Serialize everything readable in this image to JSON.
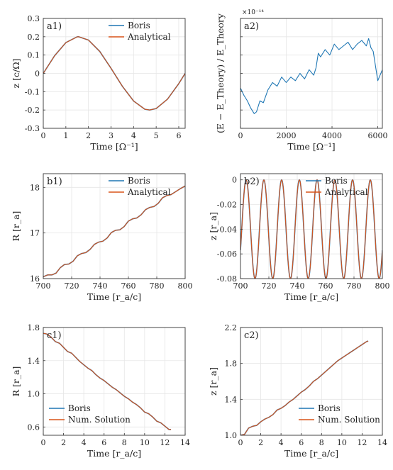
{
  "figure": {
    "colors": {
      "boris": "#1f77b4",
      "analytical": "#d95319",
      "grid": "#e6e6e6",
      "axis": "#333333"
    }
  },
  "chart_data": [
    {
      "id": "a1",
      "type": "line",
      "panel_label": "a1)",
      "xlabel": "Time [Ω⁻¹]",
      "ylabel": "z [c/Ω]",
      "xlim": [
        0,
        6.2832
      ],
      "ylim": [
        -0.3,
        0.3
      ],
      "xticks": [
        0,
        1,
        2,
        3,
        4,
        5,
        6
      ],
      "xticklabels": [
        "0",
        "1",
        "2",
        "3",
        "4",
        "5",
        "6"
      ],
      "yticks": [
        -0.3,
        -0.2,
        -0.1,
        0,
        0.1,
        0.2,
        0.3
      ],
      "yticklabels": [
        "-0.3",
        "-0.2",
        "-0.1",
        "0",
        "0.1",
        "0.2",
        "0.3"
      ],
      "grid": true,
      "legend_position": "top-right",
      "series": [
        {
          "name": "Boris",
          "color": "#1f77b4",
          "x": [
            0,
            0.5,
            1,
            1.5,
            1.571,
            2,
            2.5,
            3,
            3.5,
            4,
            4.5,
            4.712,
            5,
            5.5,
            6,
            6.283
          ],
          "y": [
            0,
            0.096,
            0.168,
            0.1995,
            0.2,
            0.182,
            0.12,
            0.028,
            -0.07,
            -0.151,
            -0.196,
            -0.2,
            -0.192,
            -0.141,
            -0.056,
            0
          ]
        },
        {
          "name": "Analytical",
          "color": "#d95319",
          "x": [
            0,
            0.5,
            1,
            1.5,
            1.571,
            2,
            2.5,
            3,
            3.5,
            4,
            4.5,
            4.712,
            5,
            5.5,
            6,
            6.283
          ],
          "y": [
            0,
            0.096,
            0.168,
            0.1995,
            0.2,
            0.182,
            0.12,
            0.028,
            -0.07,
            -0.151,
            -0.196,
            -0.2,
            -0.192,
            -0.141,
            -0.056,
            0
          ]
        }
      ]
    },
    {
      "id": "a2",
      "type": "line",
      "panel_label": "a2)",
      "xlabel": "Time [Ω⁻¹]",
      "ylabel": "(E − E_Theory) / E_Theory",
      "scale_note": "×10⁻¹⁴",
      "xlim": [
        0,
        6200
      ],
      "ylim": [
        -2,
        4
      ],
      "xticks": [
        0,
        2000,
        4000,
        6000
      ],
      "xticklabels": [
        "0",
        "2000",
        "4000",
        "6000"
      ],
      "yticks": [
        -2,
        -1,
        0,
        1,
        2,
        3,
        4
      ],
      "yticklabels": [
        "",
        "",
        "",
        "",
        "",
        "",
        ""
      ],
      "grid": true,
      "legend_position": "none",
      "series": [
        {
          "color": "#1f77b4",
          "x": [
            0,
            150,
            300,
            450,
            600,
            700,
            850,
            1000,
            1200,
            1400,
            1600,
            1800,
            2000,
            2200,
            2400,
            2600,
            2800,
            3000,
            3200,
            3300,
            3400,
            3500,
            3700,
            3900,
            4100,
            4300,
            4500,
            4700,
            4900,
            5100,
            5300,
            5500,
            5600,
            5700,
            5800,
            5900,
            6000,
            6100,
            6200
          ],
          "y": [
            0.2,
            -0.2,
            -0.5,
            -0.9,
            -1.2,
            -1.1,
            -0.5,
            -0.6,
            0.1,
            0.5,
            0.3,
            0.8,
            0.5,
            0.8,
            0.6,
            1.0,
            0.7,
            1.2,
            0.9,
            1.3,
            2.1,
            1.9,
            2.3,
            2.0,
            2.6,
            2.3,
            2.5,
            2.7,
            2.3,
            2.6,
            2.8,
            2.5,
            2.9,
            2.4,
            2.2,
            1.4,
            0.6,
            0.9,
            1.2
          ]
        }
      ]
    },
    {
      "id": "b1",
      "type": "line",
      "panel_label": "b1)",
      "xlabel": "Time [r_a/c]",
      "ylabel": "R [r_a]",
      "xlim": [
        700,
        800
      ],
      "ylim": [
        16,
        18.3
      ],
      "xticks": [
        700,
        720,
        740,
        760,
        780,
        800
      ],
      "xticklabels": [
        "700",
        "720",
        "740",
        "760",
        "780",
        "800"
      ],
      "yticks": [
        16,
        17,
        18
      ],
      "yticklabels": [
        "16",
        "17",
        "18"
      ],
      "grid": true,
      "legend_position": "top-right",
      "series": [
        {
          "name": "Boris",
          "color": "#1f77b4",
          "x": [
            700,
            703,
            706,
            709,
            712,
            715,
            718,
            721,
            724,
            727,
            730,
            733,
            736,
            739,
            742,
            745,
            748,
            751,
            754,
            757,
            760,
            763,
            766,
            769,
            772,
            775,
            778,
            781,
            784,
            787,
            790,
            793,
            796,
            800
          ],
          "y": [
            16.04,
            16.08,
            16.08,
            16.12,
            16.24,
            16.31,
            16.32,
            16.38,
            16.5,
            16.55,
            16.57,
            16.64,
            16.75,
            16.8,
            16.82,
            16.89,
            17.01,
            17.06,
            17.07,
            17.14,
            17.26,
            17.31,
            17.33,
            17.4,
            17.51,
            17.56,
            17.58,
            17.65,
            17.77,
            17.82,
            17.84,
            17.9,
            17.96,
            18.03
          ]
        },
        {
          "name": "Analytical",
          "color": "#d95319",
          "x": [
            700,
            703,
            706,
            709,
            712,
            715,
            718,
            721,
            724,
            727,
            730,
            733,
            736,
            739,
            742,
            745,
            748,
            751,
            754,
            757,
            760,
            763,
            766,
            769,
            772,
            775,
            778,
            781,
            784,
            787,
            790,
            793,
            796,
            800
          ],
          "y": [
            16.04,
            16.08,
            16.08,
            16.12,
            16.24,
            16.31,
            16.32,
            16.38,
            16.5,
            16.55,
            16.57,
            16.64,
            16.75,
            16.8,
            16.82,
            16.89,
            17.01,
            17.06,
            17.07,
            17.14,
            17.26,
            17.31,
            17.33,
            17.4,
            17.51,
            17.56,
            17.58,
            17.65,
            17.77,
            17.82,
            17.84,
            17.9,
            17.96,
            18.03
          ]
        }
      ]
    },
    {
      "id": "b2",
      "type": "line",
      "panel_label": "b2)",
      "xlabel": "Time [r_a/c]",
      "ylabel": "z [r_a]",
      "xlim": [
        700,
        800
      ],
      "ylim": [
        -0.08,
        0.005
      ],
      "xticks": [
        700,
        720,
        740,
        760,
        780,
        800
      ],
      "xticklabels": [
        "700",
        "720",
        "740",
        "760",
        "780",
        "800"
      ],
      "yticks": [
        -0.08,
        -0.06,
        -0.04,
        -0.02,
        0
      ],
      "yticklabels": [
        "-0.08",
        "-0.06",
        "-0.04",
        "-0.02",
        "0"
      ],
      "grid": true,
      "legend_position": "top-right",
      "oscillation": {
        "period": 12.5,
        "peak_time": 704,
        "max": 0,
        "min": -0.08
      },
      "series": [
        {
          "name": "Boris",
          "color": "#1f77b4"
        },
        {
          "name": "Analytical",
          "color": "#d95319"
        }
      ]
    },
    {
      "id": "c1",
      "type": "line",
      "panel_label": "c1)",
      "xlabel": "Time [r_a/c]",
      "ylabel": "R [r_a]",
      "xlim": [
        0,
        14
      ],
      "ylim": [
        0.5,
        1.8
      ],
      "xticks": [
        0,
        2,
        4,
        6,
        8,
        10,
        12,
        14
      ],
      "xticklabels": [
        "0",
        "2",
        "4",
        "6",
        "8",
        "10",
        "12",
        "14"
      ],
      "yticks": [
        0.6,
        1.0,
        1.4,
        1.8
      ],
      "yticklabels": [
        "0.6",
        "1.0",
        "1.4",
        "1.8"
      ],
      "grid": true,
      "legend_position": "bottom-left",
      "series": [
        {
          "name": "Boris",
          "color": "#1f77b4",
          "x": [
            0,
            0.4,
            0.8,
            1.2,
            1.6,
            2,
            2.4,
            2.8,
            3.2,
            3.6,
            4,
            4.4,
            4.8,
            5.2,
            5.6,
            6,
            6.4,
            6.8,
            7.2,
            7.6,
            8,
            8.4,
            8.8,
            9.2,
            9.6,
            10,
            10.4,
            10.8,
            11.2,
            11.6,
            12,
            12.4,
            12.6
          ],
          "y": [
            1.73,
            1.72,
            1.68,
            1.63,
            1.61,
            1.56,
            1.51,
            1.49,
            1.44,
            1.39,
            1.35,
            1.31,
            1.28,
            1.23,
            1.19,
            1.16,
            1.12,
            1.08,
            1.05,
            1.01,
            0.97,
            0.94,
            0.9,
            0.87,
            0.83,
            0.78,
            0.76,
            0.72,
            0.67,
            0.65,
            0.61,
            0.57,
            0.57
          ]
        },
        {
          "name": "Num. Solution",
          "color": "#d95319",
          "x": [
            0,
            0.4,
            0.8,
            1.2,
            1.6,
            2,
            2.4,
            2.8,
            3.2,
            3.6,
            4,
            4.4,
            4.8,
            5.2,
            5.6,
            6,
            6.4,
            6.8,
            7.2,
            7.6,
            8,
            8.4,
            8.8,
            9.2,
            9.6,
            10,
            10.4,
            10.8,
            11.2,
            11.6,
            12,
            12.4,
            12.6
          ],
          "y": [
            1.73,
            1.72,
            1.68,
            1.63,
            1.61,
            1.56,
            1.51,
            1.49,
            1.44,
            1.39,
            1.35,
            1.31,
            1.28,
            1.23,
            1.19,
            1.16,
            1.12,
            1.08,
            1.05,
            1.01,
            0.97,
            0.94,
            0.9,
            0.87,
            0.83,
            0.78,
            0.76,
            0.72,
            0.67,
            0.65,
            0.61,
            0.57,
            0.57
          ]
        }
      ]
    },
    {
      "id": "c2",
      "type": "line",
      "panel_label": "c2)",
      "xlabel": "Time [r_a/c]",
      "ylabel": "z [r_a]",
      "xlim": [
        0,
        14
      ],
      "ylim": [
        1.0,
        2.2
      ],
      "xticks": [
        0,
        2,
        4,
        6,
        8,
        10,
        12,
        14
      ],
      "xticklabels": [
        "0",
        "2",
        "4",
        "6",
        "8",
        "10",
        "12",
        "14"
      ],
      "yticks": [
        1.0,
        1.4,
        1.8,
        2.2
      ],
      "yticklabels": [
        "1.0",
        "1.4",
        "1.8",
        "2.2"
      ],
      "grid": true,
      "legend_position": "bottom-right",
      "series": [
        {
          "name": "Boris",
          "color": "#1f77b4",
          "x": [
            0,
            0.4,
            0.8,
            1.2,
            1.6,
            2,
            2.4,
            2.8,
            3.2,
            3.6,
            4,
            4.4,
            4.8,
            5.2,
            5.6,
            6,
            6.4,
            6.8,
            7.2,
            7.6,
            8,
            8.4,
            8.8,
            9.2,
            9.6,
            10,
            10.4,
            10.8,
            11.2,
            11.6,
            12,
            12.4,
            12.6
          ],
          "y": [
            1.0,
            1.01,
            1.08,
            1.1,
            1.11,
            1.15,
            1.18,
            1.2,
            1.23,
            1.28,
            1.3,
            1.33,
            1.37,
            1.4,
            1.44,
            1.48,
            1.51,
            1.55,
            1.6,
            1.63,
            1.67,
            1.71,
            1.75,
            1.79,
            1.83,
            1.86,
            1.89,
            1.92,
            1.95,
            1.98,
            2.01,
            2.04,
            2.05
          ]
        },
        {
          "name": "Num. Solution",
          "color": "#d95319",
          "x": [
            0,
            0.4,
            0.8,
            1.2,
            1.6,
            2,
            2.4,
            2.8,
            3.2,
            3.6,
            4,
            4.4,
            4.8,
            5.2,
            5.6,
            6,
            6.4,
            6.8,
            7.2,
            7.6,
            8,
            8.4,
            8.8,
            9.2,
            9.6,
            10,
            10.4,
            10.8,
            11.2,
            11.6,
            12,
            12.4,
            12.6
          ],
          "y": [
            1.0,
            1.01,
            1.08,
            1.1,
            1.11,
            1.15,
            1.18,
            1.2,
            1.23,
            1.28,
            1.3,
            1.33,
            1.37,
            1.4,
            1.44,
            1.48,
            1.51,
            1.55,
            1.6,
            1.63,
            1.67,
            1.71,
            1.75,
            1.79,
            1.83,
            1.86,
            1.89,
            1.92,
            1.95,
            1.98,
            2.01,
            2.04,
            2.05
          ]
        }
      ]
    }
  ]
}
